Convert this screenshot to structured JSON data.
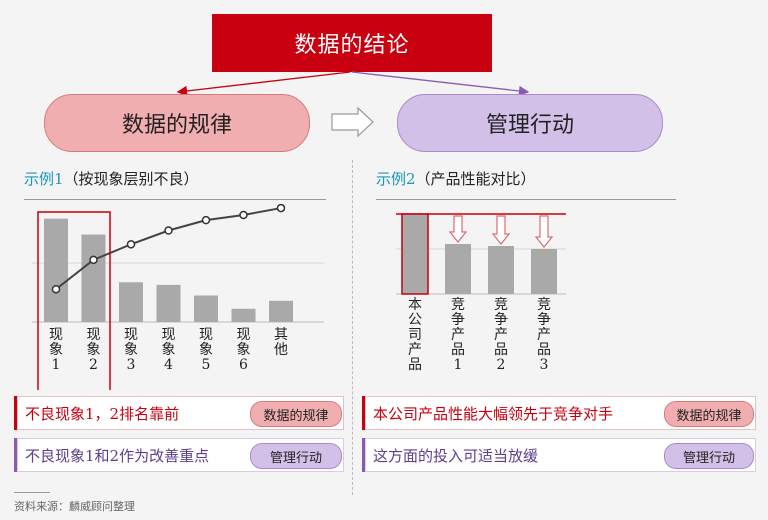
{
  "top_title": "数据的结论",
  "pill_left": "数据的规律",
  "pill_right": "管理行动",
  "left": {
    "title_accent": "示例1",
    "title_rest": "（按现象层别不良）",
    "labels": [
      "现象1",
      "现象2",
      "现象3",
      "现象4",
      "现象5",
      "现象6",
      "其他"
    ],
    "conclusion1": "不良现象1，2排名靠前",
    "tag1": "数据的规律",
    "conclusion2": "不良现象1和2作为改善重点",
    "tag2": "管理行动"
  },
  "right": {
    "title_accent": "示例2",
    "title_rest": "（产品性能对比）",
    "labels": [
      "本公司产品",
      "竞争产品1",
      "竞争产品2",
      "竞争产品3"
    ],
    "conclusion1": "本公司产品性能大幅领先于竞争对手",
    "tag1": "数据的规律",
    "conclusion2": "这方面的投入可适当放缓",
    "tag2": "管理行动"
  },
  "source": "资料来源：麟威顾问整理",
  "chart_data": [
    {
      "type": "bar",
      "categories": [
        "现象1",
        "现象2",
        "现象3",
        "现象4",
        "现象5",
        "现象6",
        "其他"
      ],
      "values": [
        39,
        33,
        15,
        14,
        10,
        5,
        8
      ],
      "cumulative_line": [
        19,
        36,
        45,
        53,
        59,
        62,
        66
      ],
      "highlight": [
        "现象1",
        "现象2"
      ]
    },
    {
      "type": "bar",
      "categories": [
        "本公司产品",
        "竞争产品1",
        "竞争产品2",
        "竞争产品3"
      ],
      "values": [
        80,
        50,
        48,
        45
      ]
    }
  ],
  "colors": {
    "red": "#c8000f",
    "pink": "#f1aeb0",
    "lavender": "#d3c0e8",
    "teal": "#1899b8",
    "bar": "#a9a9a9"
  }
}
